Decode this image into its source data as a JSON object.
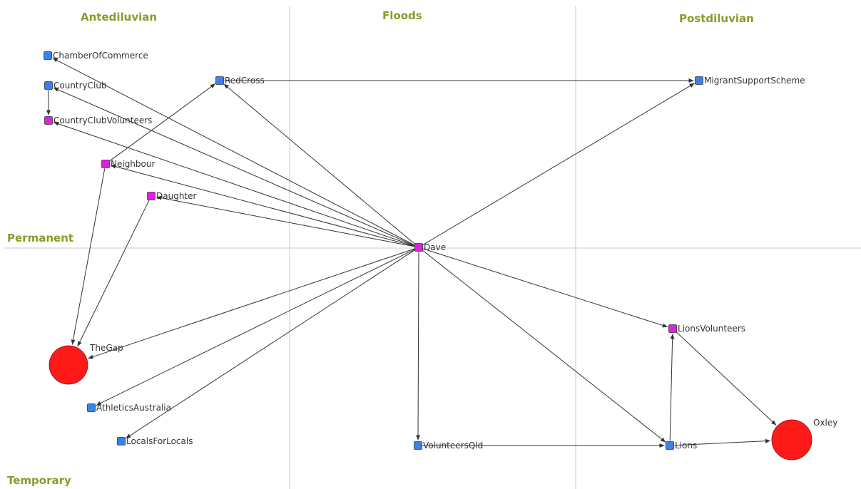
{
  "colors": {
    "zone_label": "#8a9a2a",
    "square_blue": "#3b82e8",
    "square_magenta": "#e020e0",
    "circle_red": "#ff1a1a",
    "edge": "#333333",
    "divider": "#c8c8c8"
  },
  "zones": {
    "columns": [
      "Antediluvian",
      "Floods",
      "Postdiluvian"
    ],
    "rows": [
      "Permanent",
      "Temporary"
    ]
  },
  "nodes": [
    {
      "id": "ChamberOfCommerce",
      "label": "ChamberOfCommerce",
      "shape": "square",
      "color": "blue"
    },
    {
      "id": "CountryClub",
      "label": "CountryClub",
      "shape": "square",
      "color": "blue"
    },
    {
      "id": "CountryClubVolunteers",
      "label": "CountryClubVolunteers",
      "shape": "square",
      "color": "magenta"
    },
    {
      "id": "Neighbour",
      "label": "Neighbour",
      "shape": "square",
      "color": "magenta"
    },
    {
      "id": "Daughter",
      "label": "Daughter",
      "shape": "square",
      "color": "magenta"
    },
    {
      "id": "RedCross",
      "label": "RedCross",
      "shape": "square",
      "color": "blue"
    },
    {
      "id": "MigrantSupportScheme",
      "label": "MigrantSupportScheme",
      "shape": "square",
      "color": "blue"
    },
    {
      "id": "Dave",
      "label": "Dave",
      "shape": "square",
      "color": "magenta"
    },
    {
      "id": "TheGap",
      "label": "TheGap",
      "shape": "circle",
      "color": "red"
    },
    {
      "id": "AthleticsAustralia",
      "label": "AthleticsAustralia",
      "shape": "square",
      "color": "blue"
    },
    {
      "id": "LocalsForLocals",
      "label": "LocalsForLocals",
      "shape": "square",
      "color": "blue"
    },
    {
      "id": "VolunteersQld",
      "label": "VolunteersQld",
      "shape": "square",
      "color": "blue"
    },
    {
      "id": "LionsVolunteers",
      "label": "LionsVolunteers",
      "shape": "square",
      "color": "magenta"
    },
    {
      "id": "Lions",
      "label": "Lions",
      "shape": "square",
      "color": "blue"
    },
    {
      "id": "Oxley",
      "label": "Oxley",
      "shape": "circle",
      "color": "red"
    }
  ],
  "edges": [
    {
      "from": "Dave",
      "to": "ChamberOfCommerce"
    },
    {
      "from": "Dave",
      "to": "CountryClub"
    },
    {
      "from": "Dave",
      "to": "CountryClubVolunteers"
    },
    {
      "from": "Dave",
      "to": "Neighbour"
    },
    {
      "from": "Dave",
      "to": "Daughter"
    },
    {
      "from": "Dave",
      "to": "RedCross"
    },
    {
      "from": "Dave",
      "to": "MigrantSupportScheme"
    },
    {
      "from": "Dave",
      "to": "TheGap"
    },
    {
      "from": "Dave",
      "to": "AthleticsAustralia"
    },
    {
      "from": "Dave",
      "to": "LocalsForLocals"
    },
    {
      "from": "Dave",
      "to": "VolunteersQld"
    },
    {
      "from": "Dave",
      "to": "LionsVolunteers"
    },
    {
      "from": "Dave",
      "to": "Lions"
    },
    {
      "from": "CountryClub",
      "to": "CountryClubVolunteers"
    },
    {
      "from": "Neighbour",
      "to": "RedCross"
    },
    {
      "from": "Neighbour",
      "to": "TheGap"
    },
    {
      "from": "Daughter",
      "to": "TheGap"
    },
    {
      "from": "RedCross",
      "to": "MigrantSupportScheme"
    },
    {
      "from": "VolunteersQld",
      "to": "Lions"
    },
    {
      "from": "Lions",
      "to": "LionsVolunteers"
    },
    {
      "from": "Lions",
      "to": "Oxley"
    },
    {
      "from": "LionsVolunteers",
      "to": "Oxley"
    }
  ]
}
